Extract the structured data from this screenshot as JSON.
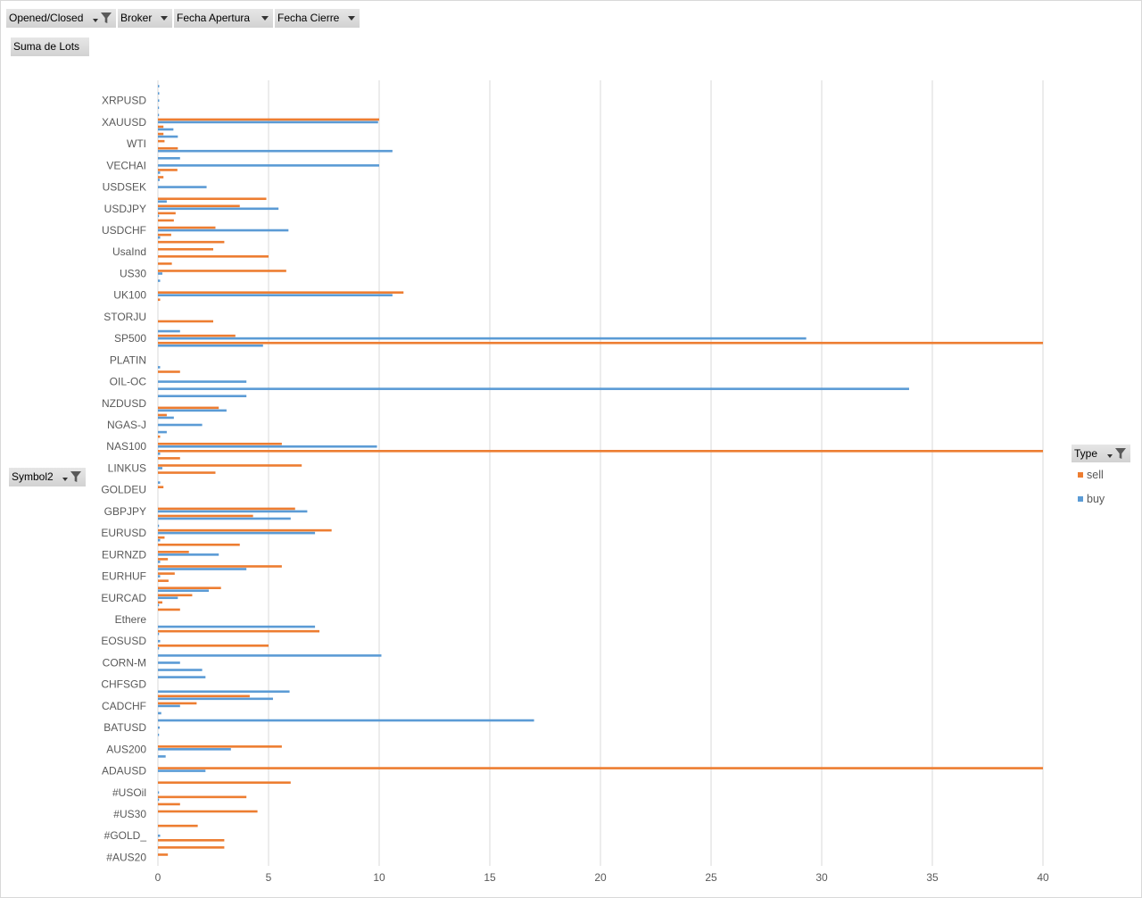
{
  "field_buttons": {
    "report_filters": [
      {
        "label": "Opened/Closed",
        "icon": "filter-icon"
      },
      {
        "label": "Broker",
        "icon": "dropdown-arrow-icon"
      },
      {
        "label": "Fecha Apertura",
        "icon": "dropdown-arrow-icon"
      },
      {
        "label": "Fecha Cierre",
        "icon": "dropdown-arrow-icon"
      }
    ],
    "values": {
      "label": "Suma de Lots"
    },
    "axis": {
      "label": "Symbol2",
      "icon": "filter-icon"
    },
    "legend": {
      "label": "Type",
      "icon": "filter-icon"
    }
  },
  "chart_data": {
    "type": "bar",
    "orientation": "horizontal",
    "grid": true,
    "legend": "right",
    "xlim": [
      0,
      40
    ],
    "xticks": [
      0,
      5,
      10,
      15,
      20,
      25,
      30,
      35,
      40
    ],
    "categories": [
      "#AUS20",
      "",
      "",
      "#GOLD_",
      "",
      "",
      "#US30",
      "",
      "",
      "#USOil",
      "",
      "",
      "ADAUSD",
      "",
      "",
      "AUS200",
      "",
      "",
      "BATUSD",
      "",
      "",
      "CADCHF",
      "",
      "",
      "CHFSGD",
      "",
      "",
      "CORN-M",
      "",
      "",
      "EOSUSD",
      "",
      "",
      "Ethere",
      "",
      "",
      "EURCAD",
      "",
      "",
      "EURHUF",
      "",
      "",
      "EURNZD",
      "",
      "",
      "EURUSD",
      "",
      "",
      "GBPJPY",
      "",
      "",
      "GOLDEU",
      "",
      "",
      "LINKUS",
      "",
      "",
      "NAS100",
      "",
      "",
      "NGAS-J",
      "",
      "",
      "NZDUSD",
      "",
      "",
      "OIL-OC",
      "",
      "",
      "PLATIN",
      "",
      "",
      "SP500",
      "",
      "",
      "STORJU",
      "",
      "",
      "UK100",
      "",
      "",
      "US30",
      "",
      "",
      "UsaInd",
      "",
      "",
      "USDCHF",
      "",
      "",
      "USDJPY",
      "",
      "",
      "USDSEK",
      "",
      "",
      "VECHAI",
      "",
      "",
      "WTI",
      "",
      "",
      "XAUUSD",
      "",
      "",
      "XRPUSD",
      "",
      ""
    ],
    "series": [
      {
        "name": "sell",
        "color": "#ED7D31",
        "values": [
          0.45,
          3,
          3,
          0,
          1.8,
          0,
          4.5,
          1,
          4,
          0,
          6,
          0,
          40,
          0,
          0,
          5.6,
          0,
          0,
          0,
          0,
          0,
          1.75,
          4.15,
          0,
          0,
          0,
          0,
          0,
          0,
          5,
          0,
          7.3,
          0,
          0,
          1,
          0.2,
          1.55,
          2.85,
          0.48,
          0.76,
          5.6,
          0.45,
          1.4,
          3.7,
          0.3,
          7.85,
          0,
          4.3,
          6.2,
          0,
          0,
          0.25,
          0,
          2.6,
          6.5,
          1,
          40,
          5.6,
          0.1,
          0,
          0,
          0.4,
          2.75,
          0,
          0,
          0,
          0,
          1,
          0,
          0,
          0,
          40,
          3.5,
          0,
          2.5,
          0,
          0,
          0.1,
          11.1,
          0,
          0,
          5.8,
          0.63,
          5,
          2.5,
          3,
          0.6,
          2.6,
          0.72,
          0.8,
          3.7,
          4.9,
          0,
          0,
          0.25,
          0.88,
          0,
          0,
          0.9,
          0.3,
          0.25,
          0.25,
          10,
          0,
          0,
          0,
          0,
          0
        ]
      },
      {
        "name": "buy",
        "color": "#5B9BD5",
        "values": [
          0,
          0,
          0,
          0.1,
          0,
          0,
          0,
          0,
          0.05,
          0.05,
          0,
          0,
          2.15,
          0,
          0.35,
          3.3,
          0,
          0.05,
          0.08,
          17,
          0.15,
          1,
          5.2,
          5.95,
          0,
          2.15,
          2,
          1,
          10.1,
          0.05,
          0.1,
          0.05,
          7.1,
          0,
          0,
          0.05,
          0.9,
          2.3,
          0,
          0.1,
          4,
          0.1,
          2.75,
          0,
          0.1,
          7.1,
          0.05,
          6,
          6.75,
          0,
          0,
          0,
          0.1,
          0,
          0.2,
          0,
          0.1,
          9.9,
          0,
          0.4,
          2,
          0.72,
          3.1,
          0,
          4,
          33.95,
          4,
          0,
          0.1,
          0,
          0,
          4.75,
          29.3,
          1,
          0,
          0,
          0,
          0,
          10.6,
          0,
          0.1,
          0.2,
          0,
          0,
          0,
          0,
          0.1,
          5.9,
          0,
          0.05,
          5.45,
          0.4,
          0,
          2.2,
          0.08,
          0.1,
          10,
          1,
          10.6,
          0,
          0.9,
          0.7,
          9.95,
          0.05,
          0.05,
          0.06,
          0.06,
          0.06
        ]
      }
    ]
  }
}
